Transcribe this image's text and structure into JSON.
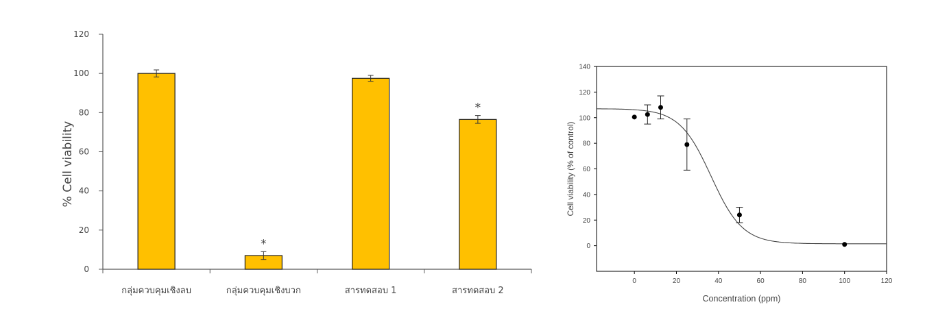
{
  "chart_data": [
    {
      "type": "bar",
      "ylabel": "% Cell viability",
      "xlabel": "",
      "ylim": [
        0,
        120
      ],
      "yticks": [
        0,
        20,
        40,
        60,
        80,
        100,
        120
      ],
      "grid": false,
      "bar_color": "#FFC000",
      "categories": [
        "กลุ่มควบคุมเชิงลบ",
        "กลุ่มควบคุมเชิงบวก",
        "สารทดสอบ 1",
        "สารทดสอบ 2"
      ],
      "values": [
        100,
        7,
        97.5,
        76.5
      ],
      "errors": [
        1.8,
        2,
        1.5,
        2
      ],
      "annotations": [
        "",
        "*",
        "",
        "*"
      ]
    },
    {
      "type": "scatter",
      "xlabel": "Concentration (ppm)",
      "ylabel": "Cell viability (% of control)",
      "xlim": [
        -18,
        120
      ],
      "ylim": [
        -20,
        140
      ],
      "xticks": [
        0,
        20,
        40,
        60,
        80,
        100,
        120
      ],
      "yticks": [
        0,
        20,
        40,
        60,
        80,
        100,
        120,
        140
      ],
      "grid": false,
      "points": [
        {
          "x": 0,
          "y": 100.5,
          "err": 0
        },
        {
          "x": 6.25,
          "y": 102.5,
          "err": 7.5
        },
        {
          "x": 12.5,
          "y": 108,
          "err": 9
        },
        {
          "x": 25,
          "y": 79,
          "err": 20
        },
        {
          "x": 50,
          "y": 24,
          "err": 6
        },
        {
          "x": 100,
          "y": 1,
          "err": 0
        }
      ],
      "fit": {
        "model": "sigmoid",
        "top": 107,
        "bottom": 1.5,
        "ec50": 36.5,
        "slope": 7.5
      }
    }
  ]
}
